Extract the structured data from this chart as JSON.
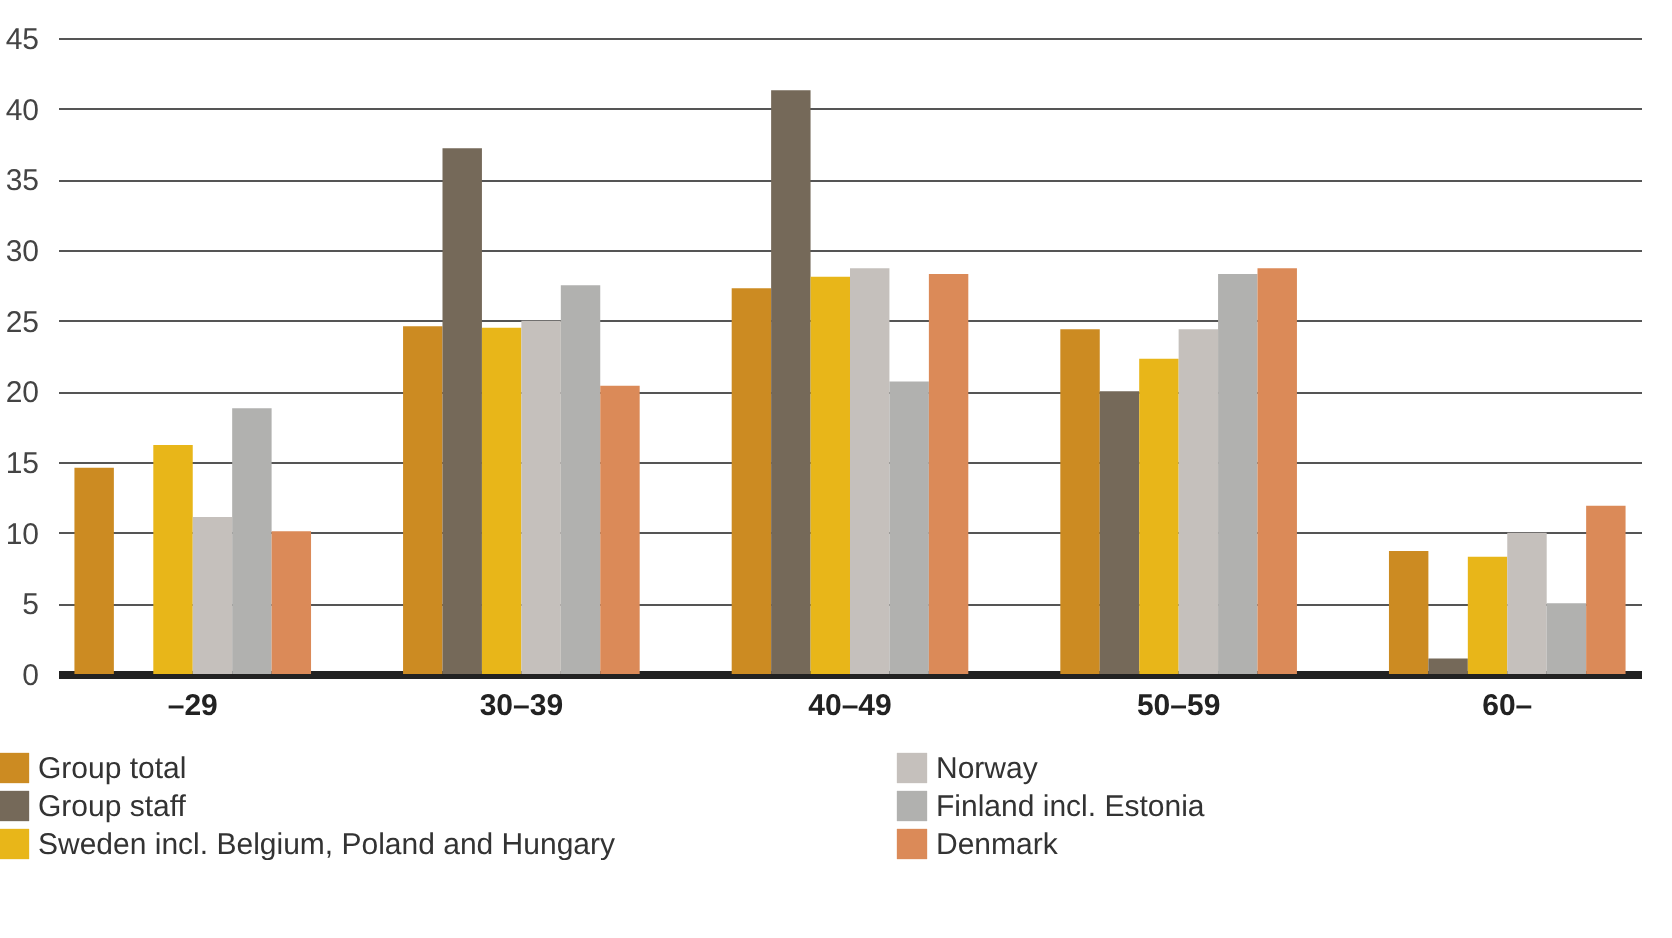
{
  "chart_data": {
    "type": "bar",
    "categories": [
      "–29",
      "30–39",
      "40–49",
      "50–59",
      "60–"
    ],
    "series": [
      {
        "name": "Group total",
        "color": "#cc8b22",
        "values": [
          14.6,
          24.6,
          27.3,
          24.4,
          8.7
        ]
      },
      {
        "name": "Group staff",
        "color": "#756959",
        "values": [
          null,
          37.2,
          41.3,
          20.0,
          1.1
        ]
      },
      {
        "name": "Sweden incl. Belgium, Poland and Hungary",
        "color": "#e8b619",
        "values": [
          16.2,
          24.5,
          28.1,
          22.3,
          8.3
        ]
      },
      {
        "name": "Norway",
        "color": "#c5c0bc",
        "values": [
          11.1,
          25.0,
          28.7,
          24.4,
          10.0
        ]
      },
      {
        "name": "Finland incl. Estonia",
        "color": "#b1b1af",
        "values": [
          18.8,
          27.5,
          20.7,
          28.3,
          5.0
        ]
      },
      {
        "name": "Denmark",
        "color": "#db8a58",
        "values": [
          10.1,
          20.4,
          28.3,
          28.7,
          11.9
        ]
      }
    ],
    "ylim": [
      0,
      45
    ],
    "yticks": [
      0,
      5,
      10,
      15,
      20,
      25,
      30,
      35,
      40,
      45
    ],
    "grid": "y",
    "legend": "bottom"
  }
}
